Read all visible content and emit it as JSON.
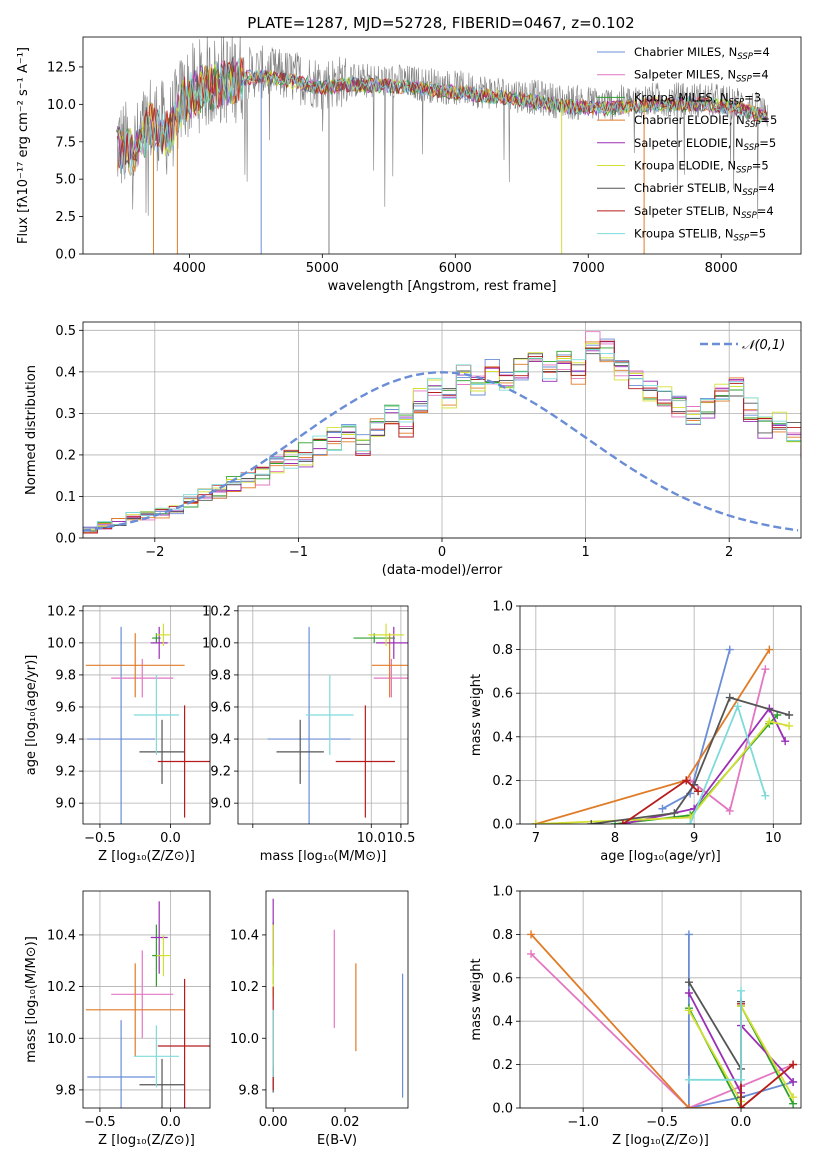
{
  "figure": {
    "title": "PLATE=1287, MJD=52728, FIBERID=0467, z=0.102"
  },
  "chart_data": [
    {
      "id": "spectrum",
      "type": "line",
      "xlabel": "wavelength [Angstrom, rest frame]",
      "ylabel": "Flux [fλ10⁻¹⁷ erg cm⁻² s⁻¹ A⁻¹]",
      "xlim": [
        3200,
        8600
      ],
      "ylim": [
        0,
        14.5
      ],
      "xticks": [
        4000,
        5000,
        6000,
        7000,
        8000
      ],
      "yticks": [
        0.0,
        2.5,
        5.0,
        7.5,
        10.0,
        12.5
      ],
      "grid": false,
      "legend_position": "right",
      "observed_color": "#808080",
      "observed_anchors": [
        [
          3450,
          7.3
        ],
        [
          3600,
          7.0
        ],
        [
          3700,
          9.0
        ],
        [
          3850,
          8.2
        ],
        [
          3950,
          10.5
        ],
        [
          4100,
          11.4
        ],
        [
          4300,
          11.8
        ],
        [
          4500,
          12.2
        ],
        [
          4800,
          11.8
        ],
        [
          5000,
          11.4
        ],
        [
          5200,
          11.6
        ],
        [
          5600,
          11.5
        ],
        [
          5900,
          11.2
        ],
        [
          6200,
          10.9
        ],
        [
          6500,
          10.6
        ],
        [
          6800,
          10.2
        ],
        [
          7100,
          10.0
        ],
        [
          7500,
          10.3
        ],
        [
          7900,
          10.3
        ],
        [
          8150,
          10.0
        ],
        [
          8350,
          9.4
        ]
      ],
      "models": [
        {
          "imf": "Chabrier",
          "lib": "MILES",
          "nssp": "4",
          "color": "#6a8dd6"
        },
        {
          "imf": "Salpeter",
          "lib": "MILES",
          "nssp": "4",
          "color": "#e377c2"
        },
        {
          "imf": "Kroupa",
          "lib": "MILES",
          "nssp": "3",
          "color": "#2ca02c"
        },
        {
          "imf": "Chabrier",
          "lib": "ELODIE",
          "nssp": "5",
          "color": "#e07b27"
        },
        {
          "imf": "Salpeter",
          "lib": "ELODIE",
          "nssp": "5",
          "color": "#9b2fb5"
        },
        {
          "imf": "Kroupa",
          "lib": "ELODIE",
          "nssp": "5",
          "color": "#d4df33"
        },
        {
          "imf": "Chabrier",
          "lib": "STELIB",
          "nssp": "4",
          "color": "#555555"
        },
        {
          "imf": "Salpeter",
          "lib": "STELIB",
          "nssp": "4",
          "color": "#b71c1c"
        },
        {
          "imf": "Kroupa",
          "lib": "STELIB",
          "nssp": "5",
          "color": "#7fdbdb"
        }
      ]
    },
    {
      "id": "residuals",
      "type": "line",
      "xlabel": "(data-model)/error",
      "ylabel": "Normed distribution",
      "xlim": [
        -2.5,
        2.5
      ],
      "ylim": [
        0,
        0.52
      ],
      "xticks": [
        -2,
        -1,
        0,
        1,
        2
      ],
      "yticks": [
        0.0,
        0.1,
        0.2,
        0.3,
        0.4,
        0.5
      ],
      "grid": true,
      "legend_position": "top-right",
      "legend_label": "𝒩(0,1)",
      "normal_color": "#6a8dd6",
      "bin_width": 0.1,
      "bin_start": -2.5,
      "base_hist": [
        0.02,
        0.03,
        0.04,
        0.05,
        0.055,
        0.06,
        0.07,
        0.09,
        0.1,
        0.11,
        0.13,
        0.14,
        0.15,
        0.17,
        0.19,
        0.2,
        0.22,
        0.24,
        0.25,
        0.22,
        0.27,
        0.3,
        0.27,
        0.33,
        0.36,
        0.34,
        0.39,
        0.37,
        0.4,
        0.38,
        0.41,
        0.43,
        0.4,
        0.42,
        0.4,
        0.47,
        0.45,
        0.4,
        0.38,
        0.36,
        0.34,
        0.32,
        0.3,
        0.31,
        0.35,
        0.36,
        0.31,
        0.27,
        0.28,
        0.25,
        0.22,
        0.18,
        0.17,
        0.14,
        0.12,
        0.1,
        0.09,
        0.08,
        0.06,
        0.05,
        0.04,
        0.03,
        0.03,
        0.025,
        0.02,
        0.02,
        0.02,
        0.02,
        0.02,
        0.02
      ]
    },
    {
      "id": "age-Z",
      "type": "scatter",
      "xlabel": "Z [log₁₀(Z/Z⊙)]",
      "ylabel": "age  [log₁₀(age/yr)]",
      "xlim": [
        -0.62,
        0.28
      ],
      "ylim": [
        8.87,
        10.23
      ],
      "xticks": [
        -0.5,
        0.0
      ],
      "xticklabels": [
        "−0.5",
        "0.0"
      ],
      "yticks": [
        9.0,
        9.2,
        9.4,
        9.6,
        9.8,
        10.0,
        10.2
      ],
      "grid": true,
      "points": [
        {
          "c": 0,
          "x": -0.35,
          "xerr": 0.24,
          "y": 9.4,
          "yerr": 0.7
        },
        {
          "c": 1,
          "x": -0.2,
          "xerr": 0.22,
          "y": 9.78,
          "yerr": 0.12
        },
        {
          "c": 2,
          "x": -0.1,
          "xerr": 0.03,
          "y": 10.03,
          "yerr": 0.03
        },
        {
          "c": 3,
          "x": -0.25,
          "xerr": 0.35,
          "y": 9.86,
          "yerr": 0.2
        },
        {
          "c": 4,
          "x": -0.08,
          "xerr": 0.06,
          "y": 10.0,
          "yerr": 0.1
        },
        {
          "c": 5,
          "x": -0.05,
          "xerr": 0.05,
          "y": 10.05,
          "yerr": 0.07
        },
        {
          "c": 6,
          "x": -0.06,
          "xerr": 0.16,
          "y": 9.32,
          "yerr": 0.2
        },
        {
          "c": 7,
          "x": 0.1,
          "xerr": 0.19,
          "y": 9.26,
          "yerr": 0.35
        },
        {
          "c": 8,
          "x": -0.1,
          "xerr": 0.16,
          "y": 9.55,
          "yerr": 0.25
        }
      ]
    },
    {
      "id": "age-mass",
      "type": "scatter",
      "xlabel": "mass [log₁₀(M/M⊙)]",
      "ylabel": "",
      "xlim": [
        7.75,
        10.62
      ],
      "ylim": [
        8.87,
        10.23
      ],
      "xticks": [
        8.0,
        10.0,
        10.5
      ],
      "xticklabels": [
        "",
        "10.0",
        "10.5"
      ],
      "yticks": [
        9.0,
        9.2,
        9.4,
        9.6,
        9.8,
        10.0,
        10.2
      ],
      "grid": true,
      "points": [
        {
          "c": 0,
          "x": 8.95,
          "xerr": 0.7,
          "y": 9.4,
          "yerr": 0.7
        },
        {
          "c": 1,
          "x": 10.34,
          "xerr": 0.3,
          "y": 9.78,
          "yerr": 0.12
        },
        {
          "c": 2,
          "x": 10.05,
          "xerr": 0.35,
          "y": 10.03,
          "yerr": 0.03
        },
        {
          "c": 3,
          "x": 10.31,
          "xerr": 0.3,
          "y": 9.86,
          "yerr": 0.2
        },
        {
          "c": 4,
          "x": 10.38,
          "xerr": 0.3,
          "y": 10.0,
          "yerr": 0.1
        },
        {
          "c": 5,
          "x": 10.25,
          "xerr": 0.3,
          "y": 10.05,
          "yerr": 0.07
        },
        {
          "c": 6,
          "x": 8.8,
          "xerr": 0.4,
          "y": 9.32,
          "yerr": 0.2
        },
        {
          "c": 7,
          "x": 9.9,
          "xerr": 0.5,
          "y": 9.26,
          "yerr": 0.35
        },
        {
          "c": 8,
          "x": 9.3,
          "xerr": 0.4,
          "y": 9.55,
          "yerr": 0.25
        }
      ]
    },
    {
      "id": "weight-age",
      "type": "line",
      "xlabel": "age  [log₁₀(age/yr)]",
      "ylabel": "mass weight",
      "xlim": [
        6.8,
        10.35
      ],
      "ylim": [
        0,
        1.0
      ],
      "xticks": [
        7,
        8,
        9,
        10
      ],
      "yticks": [
        0.0,
        0.2,
        0.4,
        0.6,
        0.8,
        1.0
      ],
      "grid": true,
      "series": [
        {
          "c": 0,
          "x": [
            8.6,
            8.95,
            9.45
          ],
          "y": [
            0.07,
            0.14,
            0.8
          ]
        },
        {
          "c": 1,
          "x": [
            8.95,
            9.45,
            9.9
          ],
          "y": [
            0.2,
            0.06,
            0.71
          ]
        },
        {
          "c": 2,
          "x": [
            8.0,
            8.95,
            9.95,
            10.05
          ],
          "y": [
            0.0,
            0.04,
            0.46,
            0.5
          ]
        },
        {
          "c": 3,
          "x": [
            7.0,
            8.9,
            9.95
          ],
          "y": [
            0.0,
            0.2,
            0.8
          ]
        },
        {
          "c": 4,
          "x": [
            8.1,
            9.0,
            9.95,
            10.15
          ],
          "y": [
            0.0,
            0.07,
            0.53,
            0.38
          ]
        },
        {
          "c": 5,
          "x": [
            7.0,
            8.95,
            9.95,
            10.2
          ],
          "y": [
            0.0,
            0.03,
            0.47,
            0.45
          ]
        },
        {
          "c": 6,
          "x": [
            7.7,
            8.75,
            9.0,
            9.45,
            10.2
          ],
          "y": [
            0.0,
            0.05,
            0.18,
            0.58,
            0.5
          ]
        },
        {
          "c": 7,
          "x": [
            8.1,
            8.9,
            9.05
          ],
          "y": [
            0.0,
            0.2,
            0.15
          ]
        },
        {
          "c": 8,
          "x": [
            8.95,
            9.55,
            9.9
          ],
          "y": [
            0.0,
            0.54,
            0.13
          ]
        }
      ]
    },
    {
      "id": "mass-Z",
      "type": "scatter",
      "xlabel": "Z [log₁₀(Z/Z⊙)]",
      "ylabel": "mass [log₁₀(M/M⊙)]",
      "xlim": [
        -0.62,
        0.28
      ],
      "ylim": [
        9.73,
        10.57
      ],
      "xticks": [
        -0.5,
        0.0
      ],
      "xticklabels": [
        "−0.5",
        "0.0"
      ],
      "yticks": [
        9.8,
        10.0,
        10.2,
        10.4
      ],
      "grid": true,
      "points": [
        {
          "c": 0,
          "x": -0.35,
          "xerr": 0.24,
          "y": 9.85,
          "yerr": 0.22
        },
        {
          "c": 1,
          "x": -0.2,
          "xerr": 0.22,
          "y": 10.17,
          "yerr": 0.17
        },
        {
          "c": 2,
          "x": -0.1,
          "xerr": 0.03,
          "y": 10.32,
          "yerr": 0.12
        },
        {
          "c": 3,
          "x": -0.25,
          "xerr": 0.35,
          "y": 10.11,
          "yerr": 0.18
        },
        {
          "c": 4,
          "x": -0.08,
          "xerr": 0.06,
          "y": 10.39,
          "yerr": 0.14
        },
        {
          "c": 5,
          "x": -0.05,
          "xerr": 0.05,
          "y": 10.32,
          "yerr": 0.08
        },
        {
          "c": 6,
          "x": -0.06,
          "xerr": 0.16,
          "y": 9.82,
          "yerr": 0.1
        },
        {
          "c": 7,
          "x": 0.1,
          "xerr": 0.19,
          "y": 9.97,
          "yerr": 0.26
        },
        {
          "c": 8,
          "x": -0.1,
          "xerr": 0.16,
          "y": 9.93,
          "yerr": 0.12
        }
      ]
    },
    {
      "id": "mass-ebv",
      "type": "scatter",
      "xlabel": "E(B-V)",
      "ylabel": "",
      "xlim": [
        -0.002,
        0.0375
      ],
      "ylim": [
        9.73,
        10.57
      ],
      "xticks": [
        0.0,
        0.02
      ],
      "xticklabels": [
        "0.00",
        "0.02"
      ],
      "yticks": [
        9.8,
        10.0,
        10.2,
        10.4
      ],
      "grid": false,
      "points": [
        {
          "c": 0,
          "x": 0.036,
          "y": 10.01,
          "yerr": 0.24
        },
        {
          "c": 1,
          "x": 0.017,
          "y": 10.23,
          "yerr": 0.19
        },
        {
          "c": 2,
          "x": 0.0,
          "y": 10.33,
          "yerr": 0.12
        },
        {
          "c": 3,
          "x": 0.023,
          "y": 10.12,
          "yerr": 0.17
        },
        {
          "c": 4,
          "x": 0.0,
          "y": 10.41,
          "yerr": 0.13
        },
        {
          "c": 5,
          "x": 0.0,
          "y": 10.3,
          "yerr": 0.14
        },
        {
          "c": 6,
          "x": 0.0,
          "y": 9.84,
          "yerr": 0.05
        },
        {
          "c": 7,
          "x": 0.0,
          "y": 10.0,
          "yerr": 0.2
        },
        {
          "c": 8,
          "x": 0.0,
          "y": 9.98,
          "yerr": 0.13
        }
      ]
    },
    {
      "id": "weight-Z",
      "type": "line",
      "xlabel": "Z [log₁₀(Z/Z⊙)]",
      "ylabel": "mass weight",
      "xlim": [
        -1.4,
        0.38
      ],
      "ylim": [
        0,
        1.0
      ],
      "xticks": [
        -1.0,
        -0.5,
        0.0
      ],
      "xticklabels": [
        "−1.0",
        "−0.5",
        "0.0"
      ],
      "yticks": [
        0.0,
        0.2,
        0.4,
        0.6,
        0.8,
        1.0
      ],
      "grid": true,
      "series": [
        {
          "c": 0,
          "x": [
            -0.33,
            -0.33,
            0.0,
            0.33
          ],
          "y": [
            0.8,
            0.0,
            0.05,
            0.12
          ]
        },
        {
          "c": 1,
          "x": [
            -1.33,
            -0.33,
            0.0,
            0.33
          ],
          "y": [
            0.71,
            0.0,
            0.1,
            0.2
          ]
        },
        {
          "c": 2,
          "x": [
            -0.33,
            0.0,
            0.0,
            0.33
          ],
          "y": [
            0.46,
            0.0,
            0.47,
            0.02
          ]
        },
        {
          "c": 3,
          "x": [
            -1.33,
            -0.33,
            0.0,
            0.33
          ],
          "y": [
            0.8,
            0.0,
            0.0,
            0.2
          ]
        },
        {
          "c": 4,
          "x": [
            -0.33,
            0.0,
            0.0,
            0.33
          ],
          "y": [
            0.53,
            0.07,
            0.38,
            0.12
          ]
        },
        {
          "c": 5,
          "x": [
            -0.33,
            0.0,
            0.0,
            0.33
          ],
          "y": [
            0.45,
            0.03,
            0.47,
            0.05
          ]
        },
        {
          "c": 6,
          "x": [
            -0.33,
            0.0,
            0.0,
            0.0
          ],
          "y": [
            0.58,
            0.18,
            0.49,
            0.05
          ]
        },
        {
          "c": 7,
          "x": [
            0.0,
            0.0,
            0.33
          ],
          "y": [
            0.48,
            0.0,
            0.2
          ]
        },
        {
          "c": 8,
          "x": [
            -0.33,
            0.0,
            0.0
          ],
          "y": [
            0.13,
            0.13,
            0.54
          ]
        }
      ]
    }
  ]
}
